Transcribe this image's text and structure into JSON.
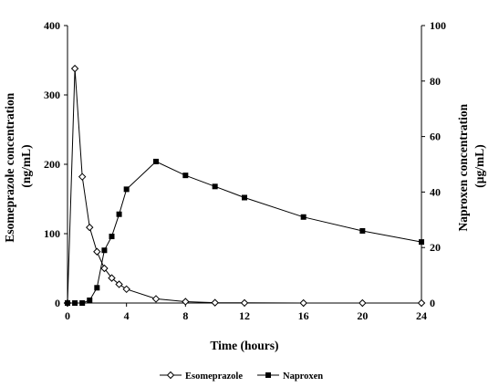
{
  "chart_data": {
    "type": "line",
    "x_ticks": [
      0,
      4,
      8,
      12,
      16,
      20,
      24
    ],
    "xlabel": "Time (hours)",
    "xlim": [
      0,
      24
    ],
    "ylabel_left": "Esomeprazole concentration (ng/mL)",
    "ylabel_left_line1": "Esomeprazole concentration",
    "ylabel_left_line2": "(ng/mL)",
    "ylim_left": [
      0,
      400
    ],
    "yticks_left": [
      0,
      100,
      200,
      300,
      400
    ],
    "ylabel_right": "Naproxen concentration (µg/mL)",
    "ylabel_right_line1": "Naproxen concentration",
    "ylabel_right_line2": "(µg/mL)",
    "ylim_right": [
      0,
      100
    ],
    "yticks_right": [
      0,
      20,
      40,
      60,
      80,
      100
    ],
    "grid": false,
    "legend_position": "bottom-center",
    "series": [
      {
        "name": "Esomeprazole",
        "axis": "left",
        "marker": "open-diamond",
        "color": "#000000",
        "x": [
          0,
          0.5,
          1,
          1.5,
          2,
          2.5,
          3,
          3.5,
          4,
          6,
          8,
          10,
          12,
          16,
          20,
          24
        ],
        "y": [
          0,
          338,
          182,
          109,
          74,
          50,
          36,
          27,
          20,
          6,
          2,
          0.5,
          0.2,
          0,
          0,
          0
        ]
      },
      {
        "name": "Naproxen",
        "axis": "right",
        "marker": "filled-square",
        "color": "#000000",
        "x": [
          0,
          0.5,
          1,
          1.5,
          2,
          2.5,
          3,
          3.5,
          4,
          6,
          8,
          10,
          12,
          16,
          20,
          24
        ],
        "y": [
          0,
          0,
          0,
          1,
          5.5,
          19,
          24,
          32,
          41,
          51,
          46,
          42,
          38,
          31,
          26,
          22
        ]
      }
    ]
  }
}
